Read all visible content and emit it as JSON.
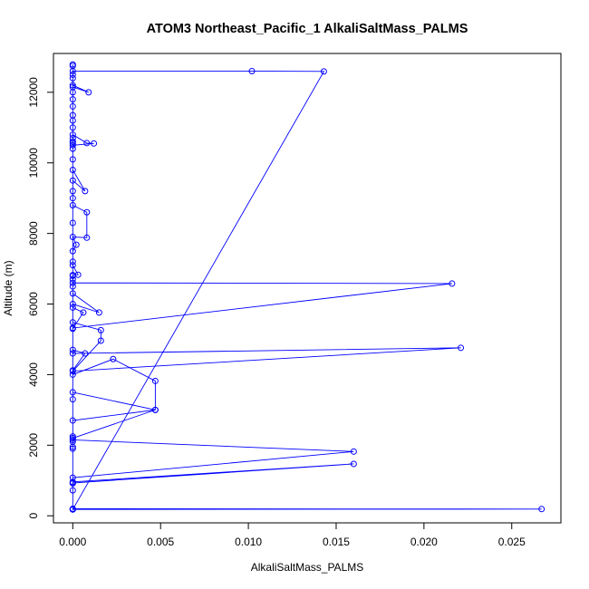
{
  "chart_data": {
    "type": "line",
    "title": "ATOM3 Northeast_Pacific_1 AlkaliSaltMass_PALMS",
    "xlabel": "AlkaliSaltMass_PALMS",
    "ylabel": "Altitude (m)",
    "xlim": [
      -0.0011,
      0.0278
    ],
    "ylim": [
      -200,
      13100
    ],
    "x_ticks": [
      0.0,
      0.005,
      0.01,
      0.015,
      0.02,
      0.025
    ],
    "x_tick_labels": [
      "0.000",
      "0.005",
      "0.010",
      "0.015",
      "0.020",
      "0.025"
    ],
    "y_ticks": [
      0,
      2000,
      4000,
      6000,
      8000,
      10000,
      12000
    ],
    "y_tick_labels": [
      "0",
      "2000",
      "4000",
      "6000",
      "8000",
      "10000",
      "12000"
    ],
    "series_color": "#0000ff",
    "marker": "open-circle",
    "grid": false,
    "legend": "none",
    "series": [
      {
        "x": [
          0,
          0,
          0,
          0.0267,
          0,
          0,
          0.016,
          0,
          0,
          0,
          0.016,
          0,
          0,
          0,
          0.0047,
          0,
          0,
          0,
          0,
          0,
          0,
          0,
          0.0047,
          0.0047,
          0.0023,
          0,
          0,
          0.0007,
          0,
          0,
          0.0221,
          0,
          0.0016,
          0.0016,
          0,
          0,
          0.0006,
          0,
          0,
          0.0015,
          0,
          0,
          0,
          0,
          0,
          0.0216,
          0,
          0,
          0.0003,
          0,
          0,
          0,
          0.0002,
          0,
          0.0008,
          0.0008,
          0,
          0,
          0,
          0,
          0,
          0.0007,
          0,
          0,
          0,
          0,
          0,
          0,
          0.0008,
          0.0012,
          0,
          0,
          0,
          0,
          0,
          0,
          0,
          0,
          0,
          0,
          0.0009,
          0,
          0,
          0,
          0,
          0.0102,
          0.0143,
          0,
          0,
          0
        ],
        "y": [
          180,
          720,
          180,
          190,
          200,
          930,
          1470,
          960,
          920,
          1080,
          1820,
          2150,
          1950,
          2200,
          3000,
          2700,
          2200,
          2100,
          1900,
          2250,
          3300,
          3500,
          3000,
          3820,
          4440,
          4000,
          4120,
          4600,
          4700,
          4600,
          4760,
          4100,
          4960,
          5260,
          5480,
          5300,
          5760,
          5900,
          6000,
          5760,
          6300,
          6500,
          6700,
          6800,
          6600,
          6580,
          5320,
          6820,
          6830,
          7100,
          7200,
          7500,
          7680,
          7900,
          7880,
          8600,
          8800,
          8300,
          9000,
          9200,
          9500,
          9200,
          9800,
          10100,
          10550,
          10600,
          10700,
          10800,
          10560,
          10550,
          10500,
          10400,
          10600,
          11000,
          11200,
          11350,
          11600,
          11800,
          12000,
          12150,
          12000,
          12200,
          12400,
          12500,
          12600,
          12600,
          12590,
          180,
          12790,
          12750
        ]
      }
    ]
  }
}
